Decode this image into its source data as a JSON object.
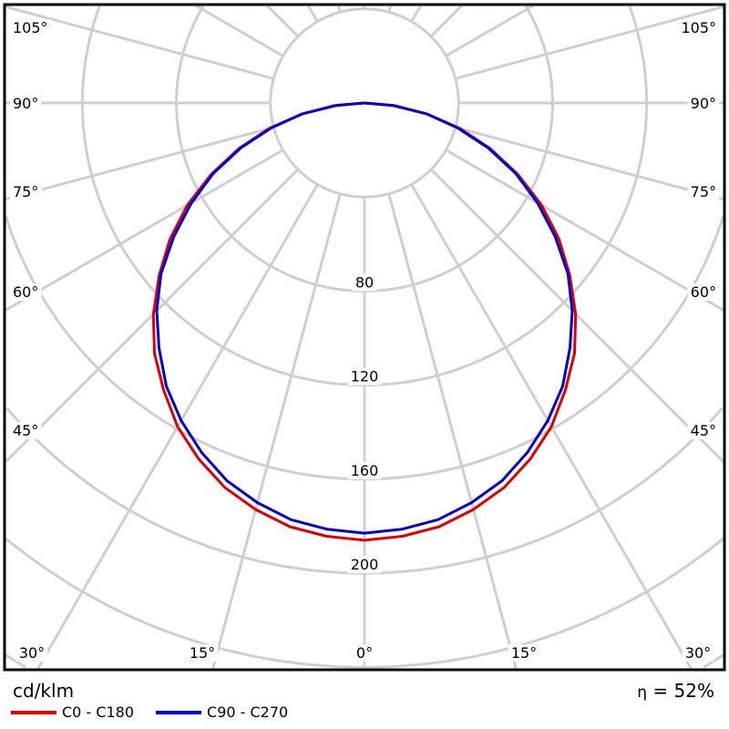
{
  "chart_data": {
    "type": "polar-line",
    "unit_label": "cd/klm",
    "efficiency_symbol": "η",
    "efficiency_value": "52%",
    "radial_ticks": [
      40,
      80,
      120,
      160,
      200,
      240,
      280,
      320
    ],
    "radial_tick_labels": [
      "80",
      "120",
      "160",
      "200"
    ],
    "radial_tick_label_values": [
      80,
      120,
      160,
      200
    ],
    "angle_labels_side": [
      "105°",
      "90°",
      "75°",
      "60°",
      "45°"
    ],
    "angle_labels_side_values": [
      105,
      90,
      75,
      60,
      45
    ],
    "angle_labels_bottom": [
      "30°",
      "15°",
      "0°",
      "15°",
      "30°"
    ],
    "angle_step_deg": 15,
    "grid": true,
    "legend_position": "bottom-left",
    "angles_deg": [
      0,
      5,
      10,
      15,
      20,
      25,
      30,
      35,
      40,
      45,
      50,
      55,
      60,
      65,
      70,
      75,
      80,
      85,
      90
    ],
    "series": [
      {
        "name": "C0 - C180",
        "color": "#e00000",
        "values": [
          186,
          185,
          183,
          179,
          174,
          167,
          159,
          149,
          139,
          127,
          114,
          101,
          87,
          72,
          57,
          42,
          27,
          13,
          0
        ]
      },
      {
        "name": "C90 - C270",
        "color": "#0000d0",
        "values": [
          183,
          182,
          180,
          176,
          171,
          164,
          156,
          147,
          136,
          125,
          113,
          99,
          85,
          71,
          56,
          41,
          27,
          12,
          0
        ]
      }
    ]
  }
}
